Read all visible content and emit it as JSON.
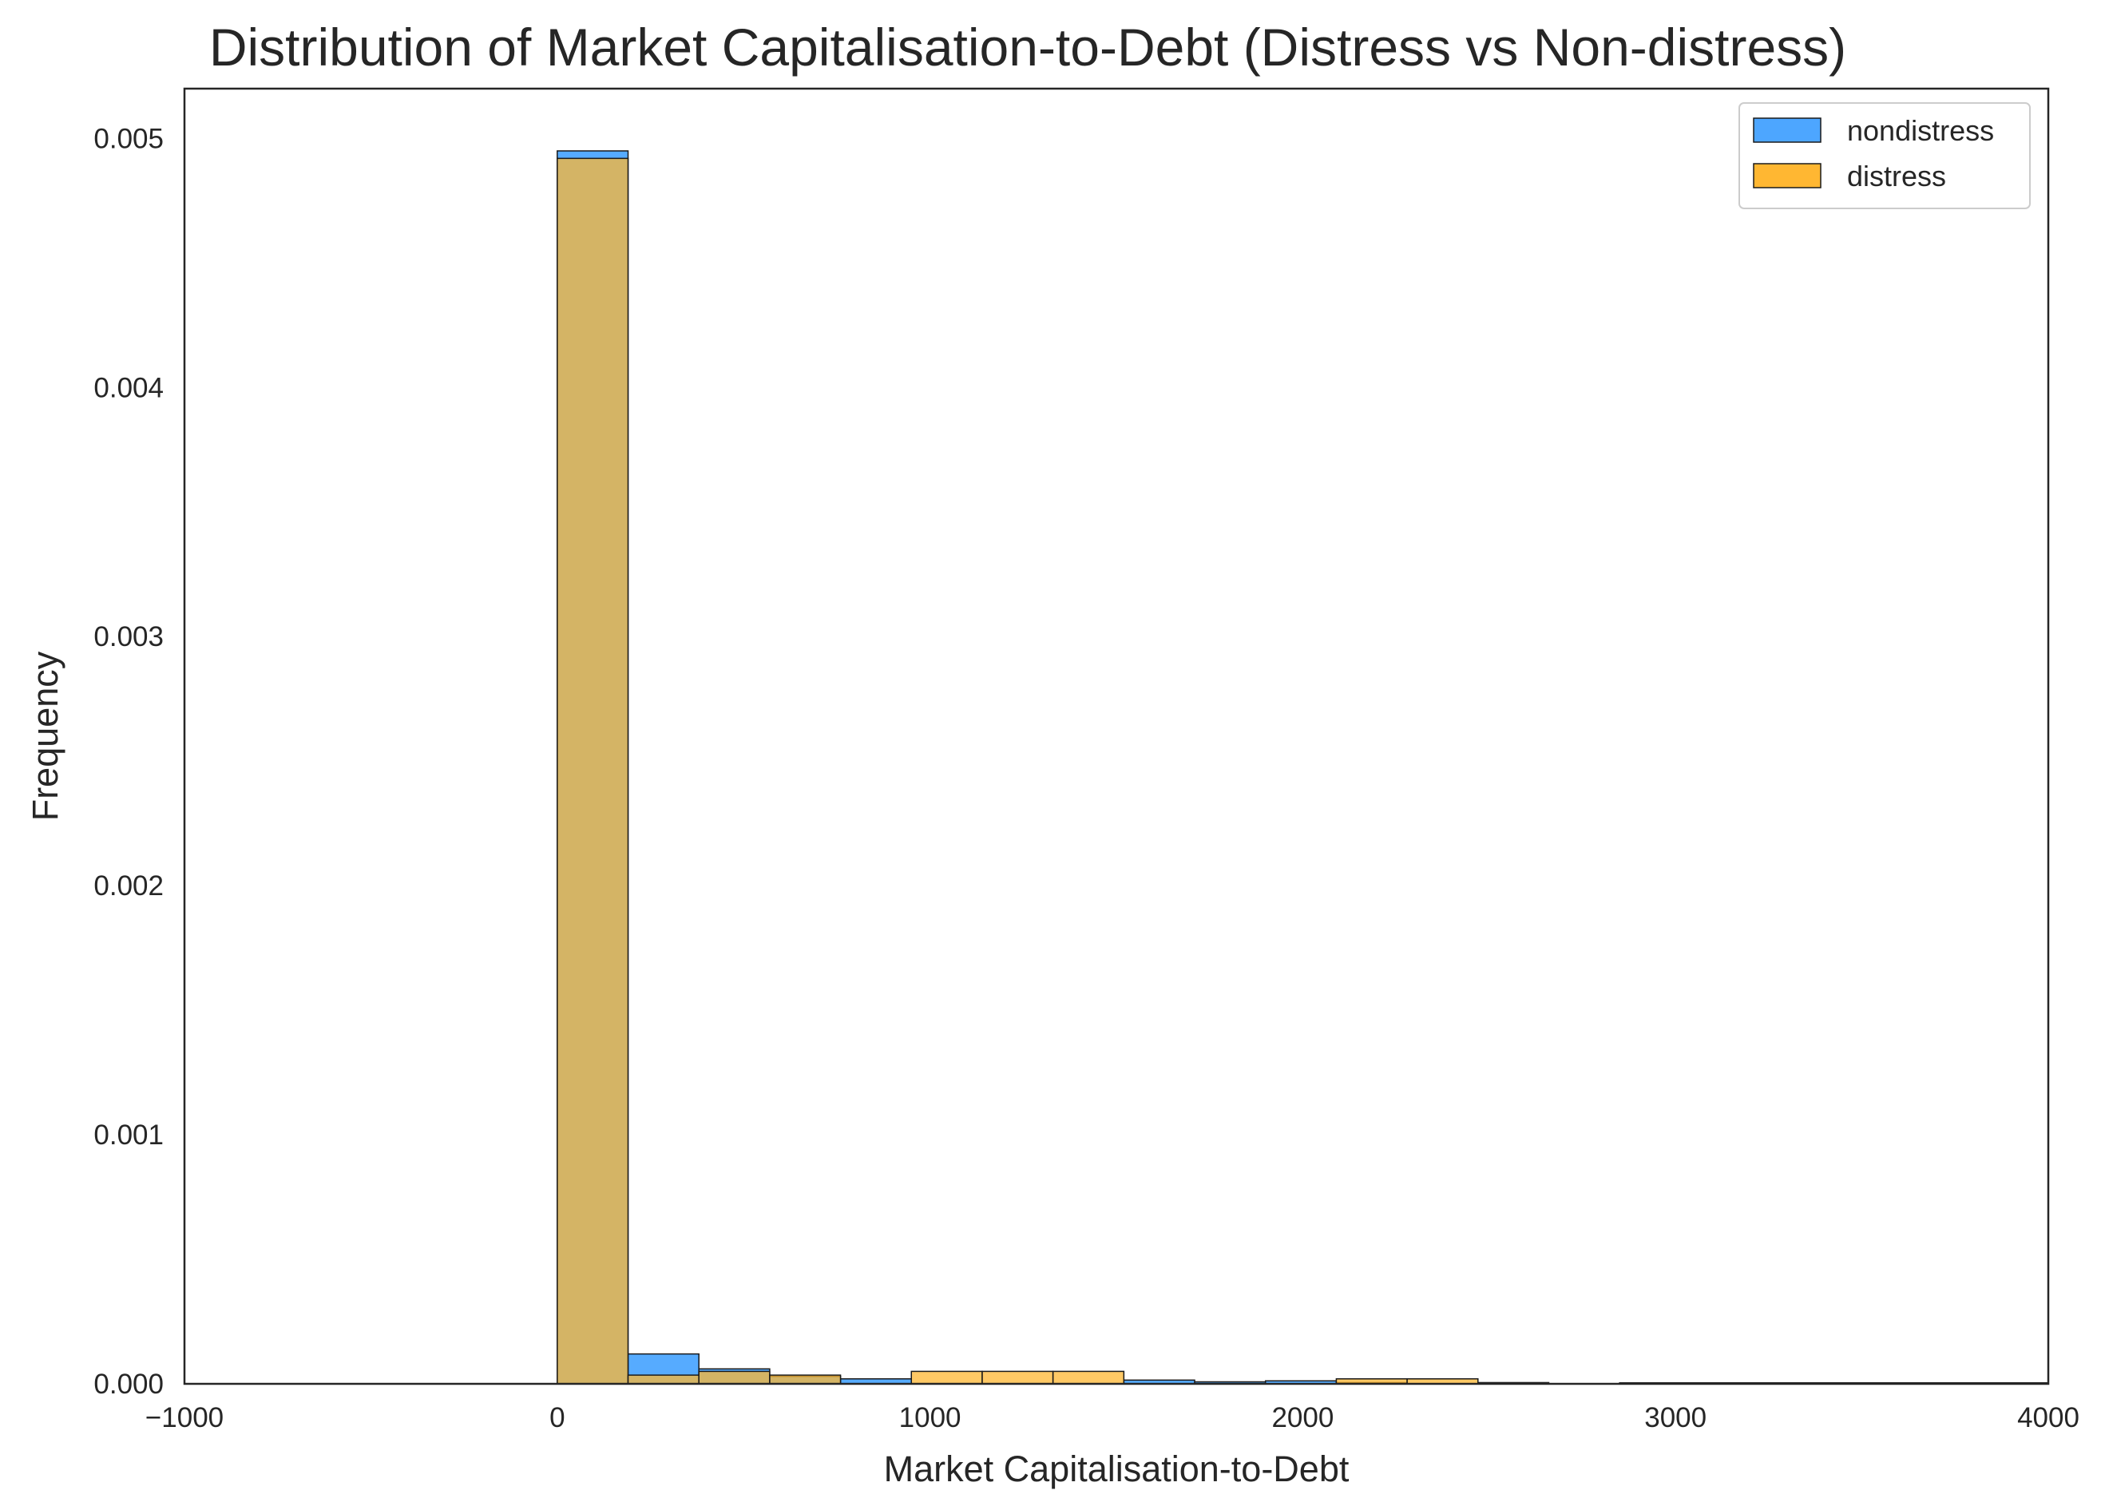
{
  "chart_data": {
    "type": "bar",
    "subtype": "overlaid-histogram",
    "title": "Distribution of Market Capitalisation-to-Debt (Distress vs Non-distress)",
    "xlabel": "Market Capitalisation-to-Debt",
    "ylabel": "Frequency",
    "xlim": [
      -1000,
      4000
    ],
    "ylim": [
      0,
      0.0052
    ],
    "xticks": [
      -1000,
      0,
      1000,
      2000,
      3000,
      4000
    ],
    "xtick_labels": [
      "−1000",
      "0",
      "1000",
      "2000",
      "3000",
      "4000"
    ],
    "yticks": [
      0,
      0.001,
      0.002,
      0.003,
      0.004,
      0.005
    ],
    "ytick_labels": [
      "0.000",
      "0.001",
      "0.002",
      "0.003",
      "0.004",
      "0.005"
    ],
    "grid": false,
    "legend_position": "top-right",
    "series": [
      {
        "name": "nondistress",
        "color": "#4da6ff",
        "bins": [
          {
            "x0": 0,
            "x1": 190,
            "y": 0.00495
          },
          {
            "x0": 190,
            "x1": 380,
            "y": 0.00012
          },
          {
            "x0": 380,
            "x1": 570,
            "y": 6e-05
          },
          {
            "x0": 570,
            "x1": 760,
            "y": 3e-05
          },
          {
            "x0": 760,
            "x1": 950,
            "y": 2e-05
          },
          {
            "x0": 1520,
            "x1": 1710,
            "y": 1.5e-05
          },
          {
            "x0": 1710,
            "x1": 1900,
            "y": 8e-06
          },
          {
            "x0": 1900,
            "x1": 2090,
            "y": 1.2e-05
          },
          {
            "x0": 2090,
            "x1": 2280,
            "y": 5e-06
          },
          {
            "x0": 2470,
            "x1": 2660,
            "y": 5e-06
          },
          {
            "x0": 2850,
            "x1": 4000,
            "y": 4e-06
          }
        ]
      },
      {
        "name": "distress",
        "color": "#ffb732",
        "bins": [
          {
            "x0": 0,
            "x1": 190,
            "y": 0.00492
          },
          {
            "x0": 190,
            "x1": 380,
            "y": 3.5e-05
          },
          {
            "x0": 380,
            "x1": 570,
            "y": 5e-05
          },
          {
            "x0": 570,
            "x1": 760,
            "y": 3.5e-05
          },
          {
            "x0": 950,
            "x1": 1140,
            "y": 5e-05
          },
          {
            "x0": 1140,
            "x1": 1330,
            "y": 5e-05
          },
          {
            "x0": 1330,
            "x1": 1520,
            "y": 5e-05
          },
          {
            "x0": 2090,
            "x1": 2280,
            "y": 2e-05
          },
          {
            "x0": 2280,
            "x1": 2470,
            "y": 2e-05
          }
        ]
      }
    ]
  },
  "colors": {
    "nondistress": "#4da6ff",
    "distress": "#ffb732",
    "overlap": "#d4a63f",
    "edge": "#1a1a1a",
    "axes": "#262626"
  }
}
